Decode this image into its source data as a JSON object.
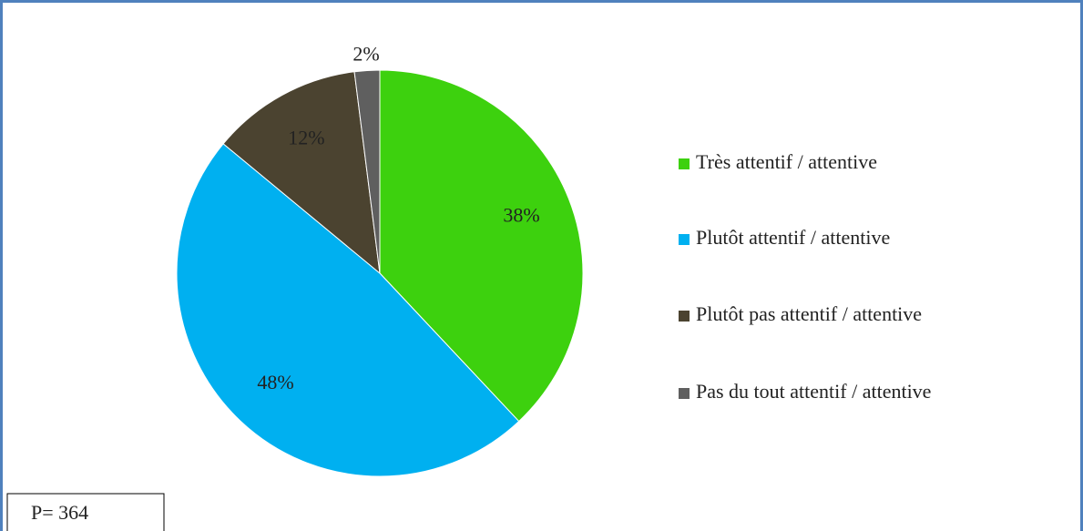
{
  "chart_data": {
    "type": "pie",
    "categories": [
      "Très attentif / attentive",
      "Plutôt attentif / attentive",
      "Plutôt pas attentif / attentive",
      "Pas du tout attentif / attentive"
    ],
    "values": [
      38,
      48,
      12,
      2
    ],
    "value_labels": [
      "38%",
      "48%",
      "12%",
      "2%"
    ],
    "colors": [
      "#3dd10e",
      "#00b0f0",
      "#4b4330",
      "#5f5f5f"
    ],
    "legend": "right",
    "annotation": "P= 364"
  }
}
